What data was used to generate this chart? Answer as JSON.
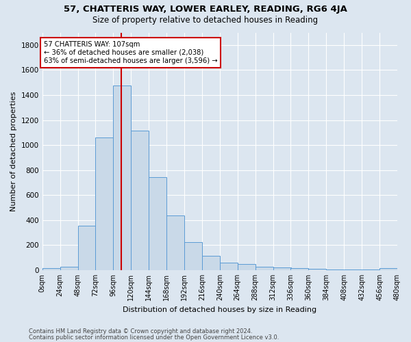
{
  "title1": "57, CHATTERIS WAY, LOWER EARLEY, READING, RG6 4JA",
  "title2": "Size of property relative to detached houses in Reading",
  "xlabel": "Distribution of detached houses by size in Reading",
  "ylabel": "Number of detached properties",
  "footnote1": "Contains HM Land Registry data © Crown copyright and database right 2024.",
  "footnote2": "Contains public sector information licensed under the Open Government Licence v3.0.",
  "bin_edges": [
    0,
    24,
    48,
    72,
    96,
    120,
    144,
    168,
    192,
    216,
    240,
    264,
    288,
    312,
    336,
    360,
    384,
    408,
    432,
    456,
    480
  ],
  "bar_heights": [
    15,
    30,
    355,
    1060,
    1475,
    1115,
    745,
    435,
    225,
    115,
    60,
    48,
    25,
    20,
    15,
    10,
    8,
    5,
    5,
    18
  ],
  "bar_color": "#c9d9e8",
  "bar_edge_color": "#5b9bd5",
  "vline_x": 107,
  "vline_color": "#cc0000",
  "annotation_text": "57 CHATTERIS WAY: 107sqm\n← 36% of detached houses are smaller (2,038)\n63% of semi-detached houses are larger (3,596) →",
  "annotation_box_color": "#ffffff",
  "annotation_box_edge": "#cc0000",
  "ylim": [
    0,
    1900
  ],
  "xlim": [
    0,
    480
  ],
  "bg_color": "#dce6f0",
  "plot_bg_color": "#dce6f0",
  "grid_color": "#ffffff",
  "title1_fontsize": 9.5,
  "title2_fontsize": 8.5,
  "ylabel_fontsize": 8.0,
  "xlabel_fontsize": 8.0,
  "footnote_fontsize": 6.0,
  "tick_fontsize": 7.0,
  "ytick_fontsize": 7.5
}
